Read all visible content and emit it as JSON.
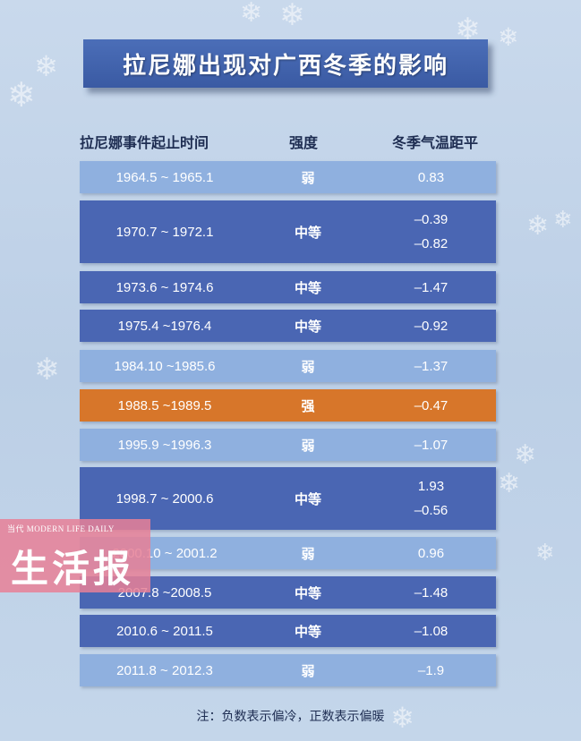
{
  "title": "拉尼娜出现对广西冬季的影响",
  "headers": {
    "period": "拉尼娜事件起止时间",
    "intensity": "强度",
    "anomaly": "冬季气温距平"
  },
  "rows": [
    {
      "period": "1964.5 ~ 1965.1",
      "intensity": "弱",
      "anomaly": "0.83",
      "anomaly2": ""
    },
    {
      "period": "1970.7 ~ 1972.1",
      "intensity": "中等",
      "anomaly": "–0.39",
      "anomaly2": "–0.82"
    },
    {
      "period": "1973.6 ~ 1974.6",
      "intensity": "中等",
      "anomaly": "–1.47",
      "anomaly2": ""
    },
    {
      "period": "1975.4 ~1976.4",
      "intensity": "中等",
      "anomaly": "–0.92",
      "anomaly2": ""
    },
    {
      "period": "1984.10 ~1985.6",
      "intensity": "弱",
      "anomaly": "–1.37",
      "anomaly2": ""
    },
    {
      "period": "1988.5 ~1989.5",
      "intensity": "强",
      "anomaly": "–0.47",
      "anomaly2": ""
    },
    {
      "period": "1995.9 ~1996.3",
      "intensity": "弱",
      "anomaly": "–1.07",
      "anomaly2": ""
    },
    {
      "period": "1998.7 ~ 2000.6",
      "intensity": "中等",
      "anomaly": "1.93",
      "anomaly2": "–0.56"
    },
    {
      "period": "2000.10 ~ 2001.2",
      "intensity": "弱",
      "anomaly": "0.96",
      "anomaly2": ""
    },
    {
      "period": "2007.8 ~2008.5",
      "intensity": "中等",
      "anomaly": "–1.48",
      "anomaly2": ""
    },
    {
      "period": "2010.6 ~ 2011.5",
      "intensity": "中等",
      "anomaly": "–1.08",
      "anomaly2": ""
    },
    {
      "period": "2011.8 ~ 2012.3",
      "intensity": "弱",
      "anomaly": "–1.9",
      "anomaly2": ""
    }
  ],
  "watermark": {
    "small": "当代 MODERN LIFE DAILY",
    "big": "生活报"
  },
  "note": "注：负数表示偏冷，正数表示偏暖",
  "colors": {
    "light_row": "#8fb0df",
    "dark_row": "#4a66b3",
    "highlight_row": "#d7762a",
    "title_bg": "#3a5aa3"
  }
}
